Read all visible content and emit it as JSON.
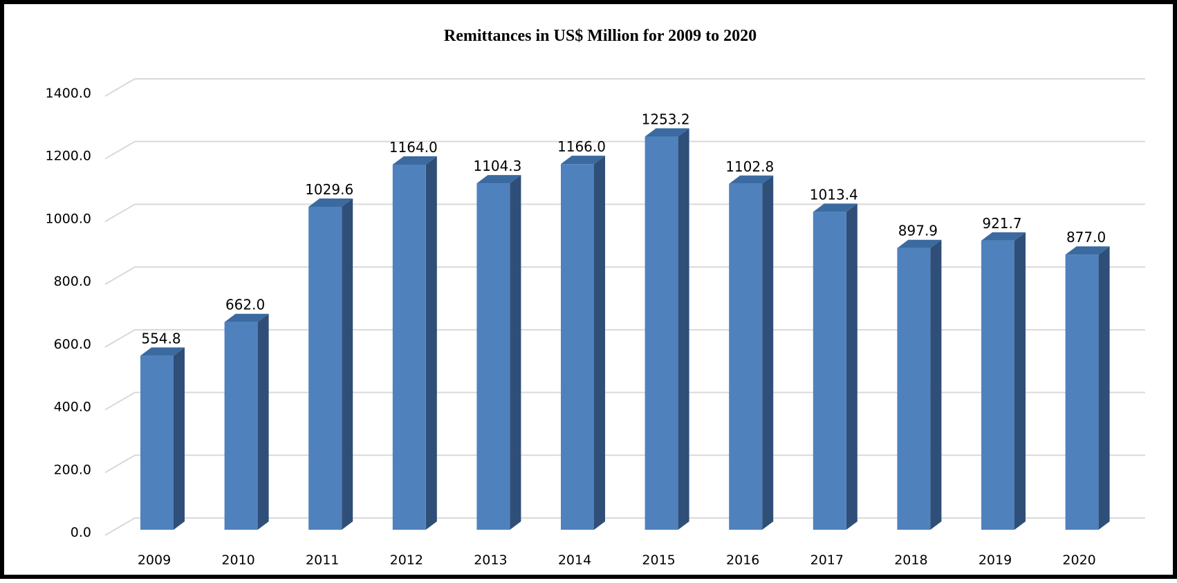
{
  "chart_data": {
    "type": "bar",
    "title": "Remittances in  US$ Million  for 2009 to 2020",
    "xlabel": "",
    "ylabel": "",
    "categories": [
      "2009",
      "2010",
      "2011",
      "2012",
      "2013",
      "2014",
      "2015",
      "2016",
      "2017",
      "2018",
      "2019",
      "2020"
    ],
    "values": [
      554.8,
      662.0,
      1029.6,
      1164.0,
      1104.3,
      1166.0,
      1253.2,
      1102.8,
      1013.4,
      897.9,
      921.7,
      877.0
    ],
    "data_labels": [
      "554.8",
      "662.0",
      "1029.6",
      "1164.0",
      "1104.3",
      "1166.0",
      "1253.2",
      "1102.8",
      "1013.4",
      "897.9",
      "921.7",
      "877.0"
    ],
    "y_ticks": [
      0,
      200,
      400,
      600,
      800,
      1000,
      1200,
      1400
    ],
    "y_tick_labels": [
      "0.0",
      "200.0",
      "400.0",
      "600.0",
      "800.0",
      "1000.0",
      "1200.0",
      "1400.0"
    ],
    "ylim": [
      0,
      1400
    ],
    "grid": true,
    "legend": "none",
    "style": "3d-column",
    "colors": {
      "bar_front": "#4f81bd",
      "bar_side": "#2f4f78",
      "bar_top": "#3b6aa0",
      "gridline": "#d9d9d9",
      "frame": "#000000"
    }
  }
}
